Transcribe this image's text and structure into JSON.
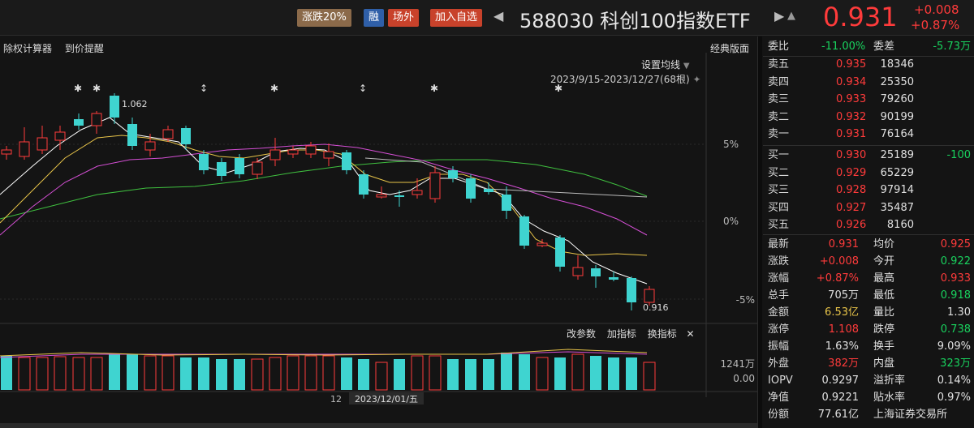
{
  "header": {
    "tag_limit": "涨跌20%",
    "tag_rong": "融",
    "tag_offexchange": "场外",
    "tag_watchlist": "加入自选",
    "title": "588030 科创100指数ETF",
    "price": "0.931",
    "change_abs": "+0.008",
    "change_pct": "+0.87%"
  },
  "toolbar": {
    "exright_calc": "除权计算器",
    "price_alert": "到价提醒",
    "classic_layout": "经典版面",
    "ma_settings": "设置均线",
    "date_range": "2023/9/15-2023/12/27(68根)"
  },
  "chart_labels": {
    "high_mark": "1.062",
    "low_mark": "0.916",
    "pct_5": "5%",
    "pct_0": "0%",
    "pct_m5": "-5%",
    "vol_top": "1241万",
    "vol_zero": "0.00",
    "axis_day": "12",
    "axis_date": "2023/12/01/五"
  },
  "vol_toolbar": {
    "change_params": "改参数",
    "add_indicator": "加指标",
    "switch_indicator": "换指标",
    "close": "✕"
  },
  "panel": {
    "weibi_label": "委比",
    "weibi_value": "-11.00%",
    "weicha_label": "委差",
    "weicha_value": "-5.73万",
    "sells": [
      {
        "label": "卖五",
        "price": "0.935",
        "vol": "18346"
      },
      {
        "label": "卖四",
        "price": "0.934",
        "vol": "25350"
      },
      {
        "label": "卖三",
        "price": "0.933",
        "vol": "79260"
      },
      {
        "label": "卖二",
        "price": "0.932",
        "vol": "90199"
      },
      {
        "label": "卖一",
        "price": "0.931",
        "vol": "76164"
      }
    ],
    "buys": [
      {
        "label": "买一",
        "price": "0.930",
        "vol": "25189",
        "extra": "-100"
      },
      {
        "label": "买二",
        "price": "0.929",
        "vol": "65229",
        "extra": ""
      },
      {
        "label": "买三",
        "price": "0.928",
        "vol": "97914",
        "extra": ""
      },
      {
        "label": "买四",
        "price": "0.927",
        "vol": "35487",
        "extra": ""
      },
      {
        "label": "买五",
        "price": "0.926",
        "vol": "8160",
        "extra": ""
      }
    ],
    "stats": [
      {
        "k1": "最新",
        "v1": "0.931",
        "c1": "red",
        "k2": "均价",
        "v2": "0.925",
        "c2": "red"
      },
      {
        "k1": "涨跌",
        "v1": "+0.008",
        "c1": "red",
        "k2": "今开",
        "v2": "0.922",
        "c2": "green"
      },
      {
        "k1": "涨幅",
        "v1": "+0.87%",
        "c1": "red",
        "k2": "最高",
        "v2": "0.933",
        "c2": "red"
      },
      {
        "k1": "总手",
        "v1": "705万",
        "c1": "white",
        "k2": "最低",
        "v2": "0.918",
        "c2": "green"
      },
      {
        "k1": "金额",
        "v1": "6.53亿",
        "c1": "yellow",
        "k2": "量比",
        "v2": "1.30",
        "c2": "white"
      },
      {
        "k1": "涨停",
        "v1": "1.108",
        "c1": "red",
        "k2": "跌停",
        "v2": "0.738",
        "c2": "green"
      },
      {
        "k1": "振幅",
        "v1": "1.63%",
        "c1": "white",
        "k2": "换手",
        "v2": "9.09%",
        "c2": "white"
      },
      {
        "k1": "外盘",
        "v1": "382万",
        "c1": "red",
        "k2": "内盘",
        "v2": "323万",
        "c2": "green"
      },
      {
        "k1": "IOPV",
        "v1": "0.9297",
        "c1": "white",
        "k2": "溢折率",
        "v2": "0.14%",
        "c2": "white"
      },
      {
        "k1": "净值",
        "v1": "0.9221",
        "c1": "white",
        "k2": "贴水率",
        "v2": "0.97%",
        "c2": "white"
      },
      {
        "k1": "份额",
        "v1": "77.61亿",
        "c1": "white",
        "k2": "上海证券交易所",
        "v2": "",
        "c2": "white"
      }
    ]
  },
  "colors": {
    "up": "#ff3b3b",
    "down": "#3fd4d0",
    "ma5": "#ffffff",
    "ma10": "#e8c449",
    "ma20": "#d54fd5",
    "ma60": "#3fbf3f"
  }
}
